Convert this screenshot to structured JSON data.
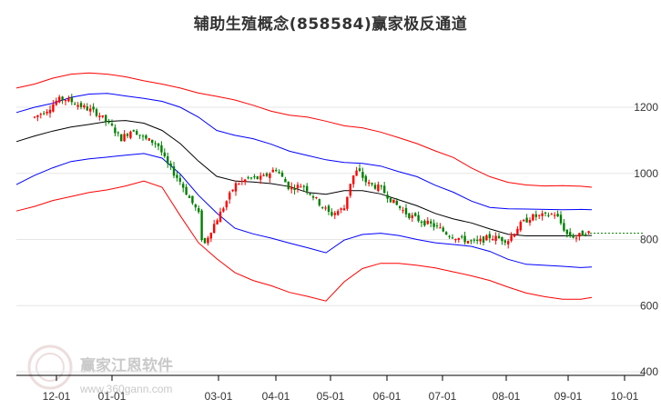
{
  "chart_data": {
    "type": "line",
    "subtype": "candlestick-with-channel",
    "title": "辅助生殖概念(858584)赢家极反通道",
    "xlabel": "",
    "ylabel": "",
    "x_tick_labels": [
      "12-01",
      "01-01",
      "03-01",
      "04-01",
      "05-01",
      "06-01",
      "07-01",
      "08-01",
      "09-01",
      "10-01"
    ],
    "y_tick_labels": [
      "400",
      "600",
      "800",
      "1000",
      "1200"
    ],
    "ylim": [
      400,
      1300
    ],
    "grid": true,
    "legend": "none",
    "colors": {
      "outer_band": "#ff0000",
      "inner_band": "#0000ff",
      "midline": "#000000",
      "up_candle": "#ff0000",
      "down_candle": "#008000",
      "last_close_line": "#008000"
    },
    "series": [
      {
        "key": "outer_upper",
        "x": [
          0,
          20,
          40,
          60,
          80,
          100,
          120,
          140,
          160,
          180,
          200,
          220,
          240,
          260,
          280,
          300,
          320,
          340,
          360,
          380,
          400,
          420,
          440,
          460,
          480,
          500,
          520,
          540,
          560,
          580,
          600,
          620,
          632
        ],
        "values": [
          1258,
          1270,
          1288,
          1300,
          1304,
          1300,
          1292,
          1280,
          1270,
          1258,
          1243,
          1233,
          1222,
          1206,
          1188,
          1176,
          1170,
          1158,
          1144,
          1138,
          1125,
          1108,
          1090,
          1068,
          1048,
          1016,
          990,
          973,
          965,
          962,
          963,
          961,
          958
        ]
      },
      {
        "key": "inner_upper",
        "x": [
          0,
          20,
          40,
          60,
          80,
          100,
          120,
          140,
          160,
          180,
          200,
          220,
          240,
          260,
          280,
          300,
          320,
          340,
          360,
          380,
          400,
          420,
          440,
          460,
          480,
          500,
          520,
          540,
          560,
          580,
          600,
          620,
          632
        ],
        "values": [
          1184,
          1200,
          1212,
          1230,
          1240,
          1242,
          1234,
          1227,
          1218,
          1200,
          1170,
          1130,
          1115,
          1105,
          1088,
          1067,
          1054,
          1041,
          1033,
          1030,
          1022,
          1005,
          990,
          964,
          943,
          916,
          897,
          893,
          892,
          891,
          890,
          891,
          890
        ]
      },
      {
        "key": "midline",
        "x": [
          0,
          20,
          40,
          60,
          80,
          100,
          120,
          140,
          160,
          180,
          200,
          220,
          240,
          260,
          280,
          300,
          320,
          340,
          360,
          380,
          400,
          420,
          440,
          460,
          480,
          500,
          520,
          540,
          560,
          580,
          600,
          620,
          632
        ],
        "values": [
          1096,
          1113,
          1128,
          1140,
          1148,
          1157,
          1160,
          1152,
          1130,
          1090,
          1037,
          991,
          977,
          974,
          969,
          960,
          942,
          937,
          948,
          948,
          938,
          920,
          902,
          879,
          862,
          850,
          832,
          816,
          811,
          811,
          811,
          812,
          812
        ]
      },
      {
        "key": "inner_lower",
        "x": [
          0,
          20,
          40,
          60,
          80,
          100,
          120,
          140,
          160,
          180,
          200,
          220,
          240,
          260,
          280,
          300,
          320,
          340,
          360,
          380,
          400,
          420,
          440,
          460,
          480,
          500,
          520,
          540,
          560,
          580,
          600,
          620,
          632
        ],
        "values": [
          966,
          994,
          1017,
          1036,
          1044,
          1049,
          1055,
          1060,
          1046,
          998,
          934,
          880,
          834,
          817,
          804,
          789,
          775,
          760,
          798,
          815,
          819,
          812,
          800,
          790,
          785,
          779,
          764,
          740,
          725,
          722,
          719,
          715,
          717
        ]
      },
      {
        "key": "outer_lower",
        "x": [
          0,
          20,
          40,
          60,
          80,
          100,
          120,
          140,
          160,
          180,
          200,
          220,
          240,
          260,
          280,
          300,
          320,
          340,
          360,
          380,
          400,
          420,
          440,
          460,
          480,
          500,
          520,
          540,
          560,
          580,
          600,
          620,
          632
        ],
        "values": [
          886,
          900,
          918,
          930,
          942,
          950,
          962,
          977,
          958,
          872,
          790,
          742,
          700,
          676,
          660,
          640,
          628,
          614,
          672,
          712,
          728,
          728,
          722,
          714,
          702,
          690,
          676,
          656,
          638,
          627,
          619,
          619,
          625
        ]
      }
    ],
    "price_path": {
      "x": [
        20,
        35,
        45,
        55,
        70,
        90,
        105,
        115,
        128,
        140,
        155,
        165,
        180,
        190,
        200,
        205,
        212,
        225,
        240,
        255,
        270,
        285,
        300,
        315,
        330,
        345,
        360,
        368,
        375,
        385,
        400,
        415,
        430,
        445,
        460,
        475,
        490,
        505,
        520,
        540,
        552,
        565,
        580,
        592,
        605,
        615,
        625,
        630
      ],
      "values": [
        1170,
        1195,
        1222,
        1225,
        1205,
        1180,
        1140,
        1105,
        1135,
        1105,
        1090,
        1030,
        975,
        925,
        880,
        775,
        820,
        885,
        965,
        985,
        985,
        1015,
        955,
        965,
        918,
        875,
        895,
        985,
        1010,
        970,
        955,
        910,
        875,
        855,
        840,
        815,
        800,
        790,
        808,
        798,
        842,
        868,
        872,
        878,
        815,
        807,
        822,
        820
      ]
    },
    "last_close": 819
  }
}
